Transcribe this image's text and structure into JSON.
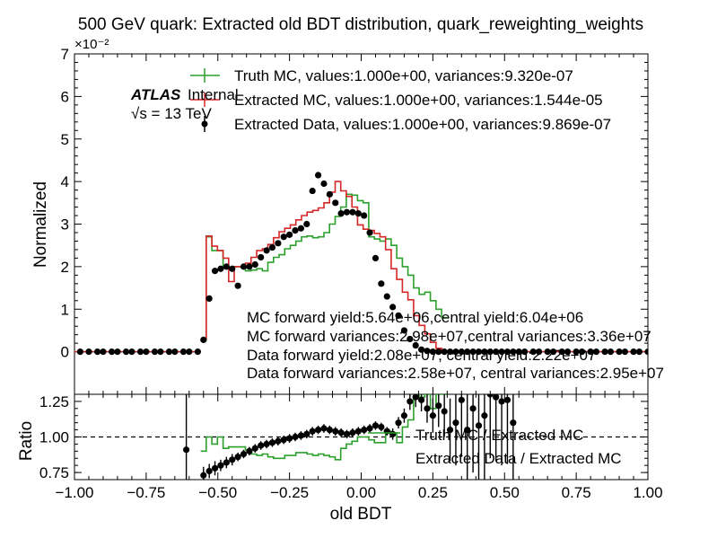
{
  "chart_data": [
    {
      "type": "line",
      "title": "500 GeV quark: Extracted old BDT distribution, quark_reweighting_weights",
      "xlabel": "",
      "ylabel": "Normalized",
      "y_offset_label": "×10⁻²",
      "xlim": [
        -1.0,
        1.0
      ],
      "ylim": [
        -1,
        7
      ],
      "y_ticks": [
        "0",
        "1",
        "2",
        "3",
        "4",
        "5",
        "6",
        "7"
      ],
      "legend": {
        "placement": "top-center",
        "entries": [
          "Truth MC, values:1.000e+00, variances:9.320e-07",
          "Extracted MC, values:1.000e+00, variances:1.544e-05",
          "Extracted Data, values:1.000e+00, variances:9.869e-07"
        ]
      },
      "atlas_label": {
        "bold": "ATLAS",
        "normal": "Internal",
        "energy": "√s = 13 TeV"
      },
      "annotations": [
        "MC forward yield:5.64e+06,central yield:6.04e+06",
        "MC forward variances:2.98e+07,central variances:3.36e+07",
        "Data forward yield:2.08e+07, central yield:2.22e+07",
        "Data forward variances:2.58e+07, central variances:2.95e+07"
      ],
      "bin_edges_x": [
        -0.56,
        0.3
      ],
      "series": [
        {
          "name": "Truth MC",
          "color": "#2ca02c",
          "style": "step",
          "values": [
            0.28,
            2.7,
            2.38,
            2.38,
            2.0,
            1.95,
            2.0,
            2.0,
            1.9,
            1.92,
            1.95,
            1.9,
            2.1,
            2.22,
            2.28,
            2.42,
            2.5,
            2.6,
            2.7,
            2.72,
            2.68,
            2.7,
            2.8,
            3.0,
            3.18,
            3.4,
            3.7,
            3.68,
            3.55,
            3.5,
            2.7,
            2.65,
            2.6,
            2.65,
            2.5,
            2.2,
            2.0,
            1.8,
            1.5,
            1.35,
            1.4,
            1.2,
            1.0,
            0.8
          ]
        },
        {
          "name": "Extracted MC",
          "color": "#d62728",
          "style": "step",
          "values": [
            0.3,
            2.72,
            2.48,
            2.38,
            2.2,
            1.65,
            2.0,
            2.0,
            2.08,
            2.22,
            2.38,
            2.42,
            2.52,
            2.68,
            2.82,
            2.9,
            2.98,
            3.1,
            3.2,
            3.28,
            3.32,
            3.38,
            3.5,
            3.75,
            4.0,
            3.78,
            3.65,
            3.4,
            2.98,
            2.88,
            2.85,
            2.78,
            2.7,
            2.4,
            1.95,
            1.7,
            1.4,
            1.22,
            0.85,
            0.62,
            0.42,
            0.22,
            0.08,
            0.02
          ]
        }
      ],
      "data_points": {
        "name": "Extracted Data",
        "color": "#000000",
        "x": [
          -0.98,
          -0.95,
          -0.92,
          -0.9,
          -0.87,
          -0.85,
          -0.82,
          -0.8,
          -0.77,
          -0.75,
          -0.72,
          -0.7,
          -0.67,
          -0.65,
          -0.62,
          -0.6,
          -0.57,
          -0.55,
          -0.53,
          -0.51,
          -0.49,
          -0.47,
          -0.45,
          -0.43,
          -0.41,
          -0.39,
          -0.37,
          -0.35,
          -0.33,
          -0.31,
          -0.29,
          -0.27,
          -0.25,
          -0.23,
          -0.21,
          -0.19,
          -0.17,
          -0.15,
          -0.13,
          -0.11,
          -0.09,
          -0.07,
          -0.05,
          -0.03,
          -0.01,
          0.01,
          0.03,
          0.05,
          0.07,
          0.09,
          0.11,
          0.13,
          0.15,
          0.17,
          0.19,
          0.21,
          0.23,
          0.25,
          0.27,
          0.29,
          0.31,
          0.33,
          0.35,
          0.37,
          0.39,
          0.41,
          0.43,
          0.45,
          0.47,
          0.49,
          0.51,
          0.53,
          0.55,
          0.57,
          0.6,
          0.62,
          0.65,
          0.67,
          0.7,
          0.72,
          0.75,
          0.77,
          0.8,
          0.82,
          0.85,
          0.87,
          0.9,
          0.92,
          0.95,
          0.97,
          1.0
        ],
        "y": [
          0.0,
          0.0,
          0.0,
          0.0,
          0.0,
          0.0,
          0.0,
          0.0,
          0.0,
          0.0,
          0.0,
          0.0,
          0.0,
          0.0,
          0.0,
          0.0,
          0.0,
          0.28,
          1.25,
          1.9,
          1.95,
          2.0,
          1.95,
          1.55,
          2.0,
          2.0,
          2.05,
          2.22,
          2.38,
          2.45,
          2.55,
          2.7,
          2.75,
          2.85,
          2.9,
          3.0,
          3.78,
          4.15,
          3.95,
          3.7,
          3.5,
          3.25,
          3.28,
          3.28,
          3.25,
          3.2,
          2.8,
          2.2,
          1.6,
          1.3,
          1.05,
          0.85,
          0.5,
          0.3,
          0.15,
          0.05,
          0.02,
          0.0,
          0.0,
          0.0,
          0.0,
          0.0,
          0.0,
          0.0,
          0.0,
          0.0,
          0.0,
          0.0,
          0.0,
          0.0,
          0.0,
          0.0,
          0.0,
          0.0,
          0.0,
          0.0,
          0.0,
          0.0,
          0.0,
          0.0,
          0.0,
          0.0,
          0.0,
          0.0,
          0.0,
          0.0,
          0.0,
          0.0,
          0.0,
          0.0,
          0.0
        ]
      }
    },
    {
      "type": "line",
      "xlabel": "old BDT",
      "ylabel": "Ratio",
      "xlim": [
        -1.0,
        1.0
      ],
      "ylim": [
        0.7,
        1.3
      ],
      "x_ticks": [
        "−1.00",
        "−0.75",
        "−0.50",
        "−0.25",
        "0.00",
        "0.25",
        "0.50",
        "0.75",
        "1.00"
      ],
      "y_ticks": [
        "0.75",
        "1.00",
        "1.25"
      ],
      "reference_line": 1.0,
      "legend": {
        "placement": "right",
        "entries": [
          "Truth MC / Extracted MC",
          "Extracted Data / Extracted MC"
        ]
      },
      "series": [
        {
          "name": "Truth MC / Extracted MC",
          "color": "#2ca02c",
          "style": "step",
          "values": [
            0.9,
            1.0,
            0.95,
            1.0,
            0.92,
            0.93,
            0.93,
            0.93,
            0.91,
            0.88,
            0.87,
            0.88,
            0.86,
            0.85,
            0.85,
            0.87,
            0.87,
            0.89,
            0.89,
            0.88,
            0.87,
            0.88,
            0.87,
            0.86,
            0.84,
            0.92,
            0.95,
            0.97,
            1.0,
            1.0,
            0.98,
            0.96,
            0.96,
            1.04,
            1.03,
            0.96,
            1.07,
            1.12,
            1.3,
            1.28,
            1.3,
            1.2,
            1.3,
            1.3
          ]
        }
      ],
      "data_points": {
        "name": "Extracted Data / Extracted MC",
        "color": "#000000",
        "x": [
          -0.61,
          -0.55,
          -0.53,
          -0.51,
          -0.49,
          -0.47,
          -0.45,
          -0.43,
          -0.41,
          -0.39,
          -0.37,
          -0.35,
          -0.33,
          -0.31,
          -0.29,
          -0.27,
          -0.25,
          -0.23,
          -0.21,
          -0.19,
          -0.17,
          -0.15,
          -0.13,
          -0.11,
          -0.09,
          -0.07,
          -0.05,
          -0.03,
          -0.01,
          0.01,
          0.03,
          0.05,
          0.07,
          0.09,
          0.11,
          0.13,
          0.15,
          0.17,
          0.19,
          0.21,
          0.23,
          0.25,
          0.27,
          0.29,
          0.31,
          0.33,
          0.35,
          0.37,
          0.39,
          0.41,
          0.43,
          0.45,
          0.47,
          0.49,
          0.51,
          0.53
        ],
        "y": [
          0.91,
          0.73,
          0.76,
          0.78,
          0.8,
          0.82,
          0.84,
          0.86,
          0.88,
          0.9,
          0.92,
          0.94,
          0.95,
          0.96,
          0.97,
          0.98,
          0.99,
          1.0,
          1.01,
          1.02,
          1.04,
          1.05,
          1.06,
          1.05,
          1.04,
          1.03,
          1.02,
          1.03,
          1.04,
          1.05,
          1.06,
          1.08,
          1.07,
          1.04,
          1.02,
          1.1,
          1.15,
          1.25,
          1.28,
          1.26,
          1.2,
          1.15,
          1.22,
          1.18,
          1.05,
          1.1,
          1.26,
          1.05,
          1.2,
          1.08,
          1.15,
          1.3,
          1.28,
          1.25,
          1.26,
          1.1
        ],
        "error": [
          0.45,
          0.06,
          0.05,
          0.05,
          0.04,
          0.04,
          0.04,
          0.03,
          0.03,
          0.03,
          0.03,
          0.03,
          0.03,
          0.03,
          0.03,
          0.03,
          0.03,
          0.03,
          0.03,
          0.03,
          0.03,
          0.03,
          0.03,
          0.03,
          0.03,
          0.03,
          0.03,
          0.03,
          0.03,
          0.03,
          0.03,
          0.03,
          0.03,
          0.03,
          0.04,
          0.04,
          0.05,
          0.06,
          0.07,
          0.08,
          0.1,
          0.12,
          0.15,
          0.18,
          0.22,
          0.3,
          0.4,
          0.45,
          0.45,
          0.45,
          0.45,
          0.45,
          0.45,
          0.45,
          0.45,
          0.45
        ]
      }
    }
  ]
}
